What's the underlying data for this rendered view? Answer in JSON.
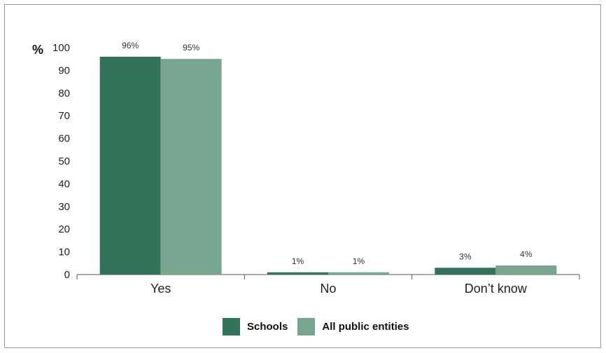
{
  "chart_data": {
    "type": "bar",
    "ylabel": "%",
    "ylim": [
      0,
      100
    ],
    "yticks": [
      0,
      10,
      20,
      30,
      40,
      50,
      60,
      70,
      80,
      90,
      100
    ],
    "grid": false,
    "legend_position": "bottom",
    "categories": [
      "Yes",
      "No",
      "Don’t know"
    ],
    "series": [
      {
        "name": "Schools",
        "color": "#32735a",
        "values": [
          96,
          1,
          3
        ],
        "labels": [
          "96%",
          "1%",
          "3%"
        ]
      },
      {
        "name": "All public entities",
        "color": "#78a590",
        "values": [
          95,
          1,
          4
        ],
        "labels": [
          "95%",
          "1%",
          "4%"
        ]
      }
    ]
  }
}
